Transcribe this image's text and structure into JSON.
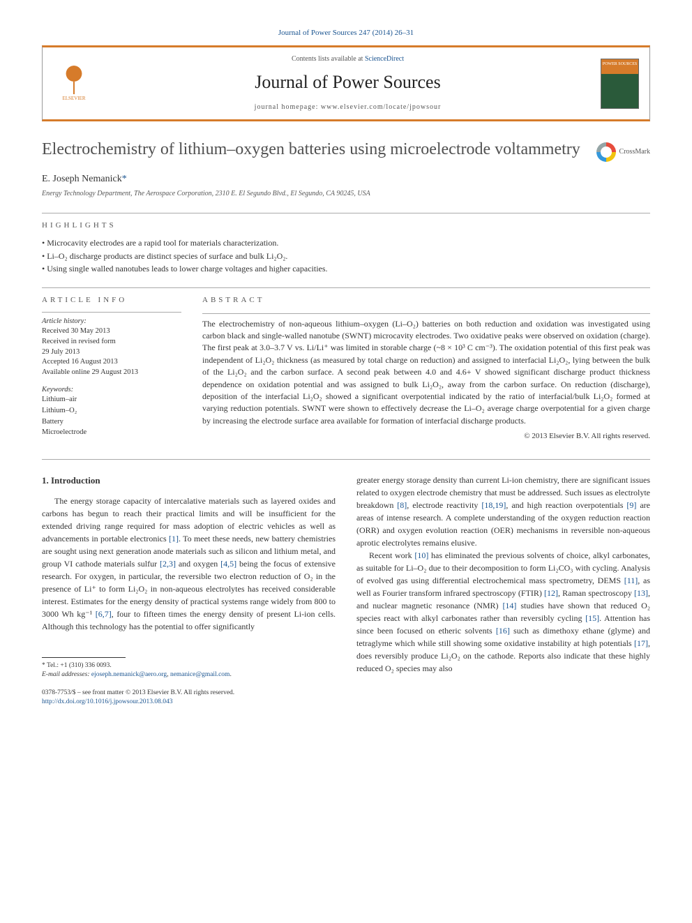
{
  "journal": {
    "citation_link": "Journal of Power Sources 247 (2014) 26–31",
    "contents_prefix": "Contents lists available at ",
    "contents_site": "ScienceDirect",
    "name": "Journal of Power Sources",
    "homepage_prefix": "journal homepage: ",
    "homepage_url": "www.elsevier.com/locate/jpowsour",
    "publisher_logo_text": "ELSEVIER",
    "cover_text": "POWER SOURCES"
  },
  "article": {
    "title": "Electrochemistry of lithium–oxygen batteries using microelectrode voltammetry",
    "crossmark_label": "CrossMark",
    "author_name": "E. Joseph Nemanick",
    "author_marker": "*",
    "affiliation": "Energy Technology Department, The Aerospace Corporation, 2310 E. El Segundo Blvd., El Segundo, CA 90245, USA"
  },
  "highlights": {
    "label": "HIGHLIGHTS",
    "items": [
      "Microcavity electrodes are a rapid tool for materials characterization.",
      "Li–O₂ discharge products are distinct species of surface and bulk Li₂O₂.",
      "Using single walled nanotubes leads to lower charge voltages and higher capacities."
    ]
  },
  "article_info": {
    "label": "ARTICLE INFO",
    "history_label": "Article history:",
    "received": "Received 30 May 2013",
    "revised1": "Received in revised form",
    "revised2": "29 July 2013",
    "accepted": "Accepted 16 August 2013",
    "online": "Available online 29 August 2013",
    "keywords_label": "Keywords:",
    "keywords": [
      "Lithium–air",
      "Lithium–O₂",
      "Battery",
      "Microelectrode"
    ]
  },
  "abstract": {
    "label": "ABSTRACT",
    "text": "The electrochemistry of non-aqueous lithium–oxygen (Li–O₂) batteries on both reduction and oxidation was investigated using carbon black and single-walled nanotube (SWNT) microcavity electrodes. Two oxidative peaks were observed on oxidation (charge). The first peak at 3.0–3.7 V vs. Li/Li⁺ was limited in storable charge (~8 × 10³ C cm⁻³). The oxidation potential of this first peak was independent of Li₂O₂ thickness (as measured by total charge on reduction) and assigned to interfacial Li₂O₂, lying between the bulk of the Li₂O₂ and the carbon surface. A second peak between 4.0 and 4.6+ V showed significant discharge product thickness dependence on oxidation potential and was assigned to bulk Li₂O₂, away from the carbon surface. On reduction (discharge), deposition of the interfacial Li₂O₂ showed a significant overpotential indicated by the ratio of interfacial/bulk Li₂O₂ formed at varying reduction potentials. SWNT were shown to effectively decrease the Li–O₂ average charge overpotential for a given charge by increasing the electrode surface area available for formation of interfacial discharge products.",
    "copyright": "© 2013 Elsevier B.V. All rights reserved."
  },
  "body": {
    "section_number": "1.",
    "section_title": "Introduction",
    "col1_html": "The energy storage capacity of intercalative materials such as layered oxides and carbons has begun to reach their practical limits and will be insufficient for the extended driving range required for mass adoption of electric vehicles as well as advancements in portable electronics <span class='ref-link'>[1]</span>. To meet these needs, new battery chemistries are sought using next generation anode materials such as silicon and lithium metal, and group VI cathode materials sulfur <span class='ref-link'>[2,3]</span> and oxygen <span class='ref-link'>[4,5]</span> being the focus of extensive research. For oxygen, in particular, the reversible two electron reduction of O₂ in the presence of Li⁺ to form Li₂O₂ in non-aqueous electrolytes has received considerable interest. Estimates for the energy density of practical systems range widely from 800 to 3000 Wh kg⁻¹ <span class='ref-link'>[6,7]</span>, four to fifteen times the energy density of present Li-ion cells. Although this technology has the potential to offer significantly",
    "col2_p1_html": "greater energy storage density than current Li-ion chemistry, there are significant issues related to oxygen electrode chemistry that must be addressed. Such issues as electrolyte breakdown <span class='ref-link'>[8]</span>, electrode reactivity <span class='ref-link'>[18,19]</span>, and high reaction overpotentials <span class='ref-link'>[9]</span> are areas of intense research. A complete understanding of the oxygen reduction reaction (ORR) and oxygen evolution reaction (OER) mechanisms in reversible non-aqueous aprotic electrolytes remains elusive.",
    "col2_p2_html": "Recent work <span class='ref-link'>[10]</span> has eliminated the previous solvents of choice, alkyl carbonates, as suitable for Li–O₂ due to their decomposition to form Li₂CO₃ with cycling. Analysis of evolved gas using differential electrochemical mass spectrometry, DEMS <span class='ref-link'>[11]</span>, as well as Fourier transform infrared spectroscopy (FTIR) <span class='ref-link'>[12]</span>, Raman spectroscopy <span class='ref-link'>[13]</span>, and nuclear magnetic resonance (NMR) <span class='ref-link'>[14]</span> studies have shown that reduced O₂ species react with alkyl carbonates rather than reversibly cycling <span class='ref-link'>[15]</span>. Attention has since been focused on etheric solvents <span class='ref-link'>[16]</span> such as dimethoxy ethane (glyme) and tetraglyme which while still showing some oxidative instability at high potentials <span class='ref-link'>[17]</span>, does reversibly produce Li₂O₂ on the cathode. Reports also indicate that these highly reduced O₂ species may also"
  },
  "footnote": {
    "tel_label": "* Tel.: ",
    "tel": "+1 (310) 336 0093.",
    "email_label": "E-mail addresses: ",
    "email1": "ejoseph.nemanick@aero.org",
    "email_sep": ", ",
    "email2": "nemanice@gmail.com",
    "email_end": "."
  },
  "bottom": {
    "issn": "0378-7753/$ – see front matter © 2013 Elsevier B.V. All rights reserved.",
    "doi": "http://dx.doi.org/10.1016/j.jpowsour.2013.08.043"
  },
  "colors": {
    "accent_orange": "#d67b2a",
    "link_blue": "#1a5490",
    "text_gray": "#505050"
  }
}
